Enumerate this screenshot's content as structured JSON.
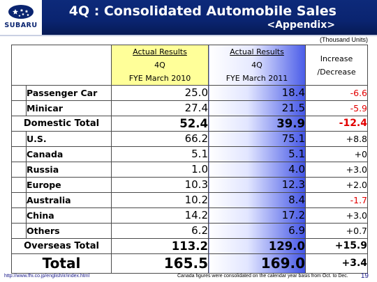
{
  "header": {
    "logo_text": "SUBARU",
    "title": "4Q : Consolidated Automobile Sales",
    "subtitle": "<Appendix>"
  },
  "units": "(Thousand Units)",
  "columns": {
    "col2010": {
      "line1": "Actual Results",
      "line2": "4Q",
      "line3": "FYE March 2010"
    },
    "col2011": {
      "line1": "Actual Results",
      "line2": "4Q",
      "line3": "FYE March 2011"
    },
    "increase": {
      "line1": "Increase",
      "line2": "/Decrease"
    }
  },
  "rows": {
    "passenger_car": {
      "label": "Passenger Car",
      "v2010": "25.0",
      "v2011": "18.4",
      "inc": "-6.6"
    },
    "minicar": {
      "label": "Minicar",
      "v2010": "27.4",
      "v2011": "21.5",
      "inc": "-5.9"
    },
    "domestic_total": {
      "label": "Domestic Total",
      "v2010": "52.4",
      "v2011": "39.9",
      "inc": "-12.4"
    },
    "us": {
      "label": "U.S.",
      "v2010": "66.2",
      "v2011": "75.1",
      "inc": "+8.8"
    },
    "canada": {
      "label": "Canada",
      "v2010": "5.1",
      "v2011": "5.1",
      "inc": "+0"
    },
    "russia": {
      "label": "Russia",
      "v2010": "1.0",
      "v2011": "4.0",
      "inc": "+3.0"
    },
    "europe": {
      "label": "Europe",
      "v2010": "10.3",
      "v2011": "12.3",
      "inc": "+2.0"
    },
    "australia": {
      "label": "Australia",
      "v2010": "10.2",
      "v2011": "8.4",
      "inc": "-1.7"
    },
    "china": {
      "label": "China",
      "v2010": "14.2",
      "v2011": "17.2",
      "inc": "+3.0"
    },
    "others": {
      "label": "Others",
      "v2010": "6.2",
      "v2011": "6.9",
      "inc": "+0.7"
    },
    "overseas_total": {
      "label": "Overseas Total",
      "v2010": "113.2",
      "v2011": "129.0",
      "inc": "+15.9"
    },
    "total": {
      "label": "Total",
      "v2010": "165.5",
      "v2011": "169.0",
      "inc": "+3.4"
    }
  },
  "footer": {
    "url": "http://www.fhi.co.jp/english/ir/index.html",
    "note": "Canada figures were consolidated on the calendar year basis from Oct. to Dec.",
    "page": "19"
  },
  "colors": {
    "header_bg": "#0a2470",
    "highlight_2010": "#ffff99",
    "gradient_2011": "#4456e6",
    "negative": "#e20000"
  }
}
